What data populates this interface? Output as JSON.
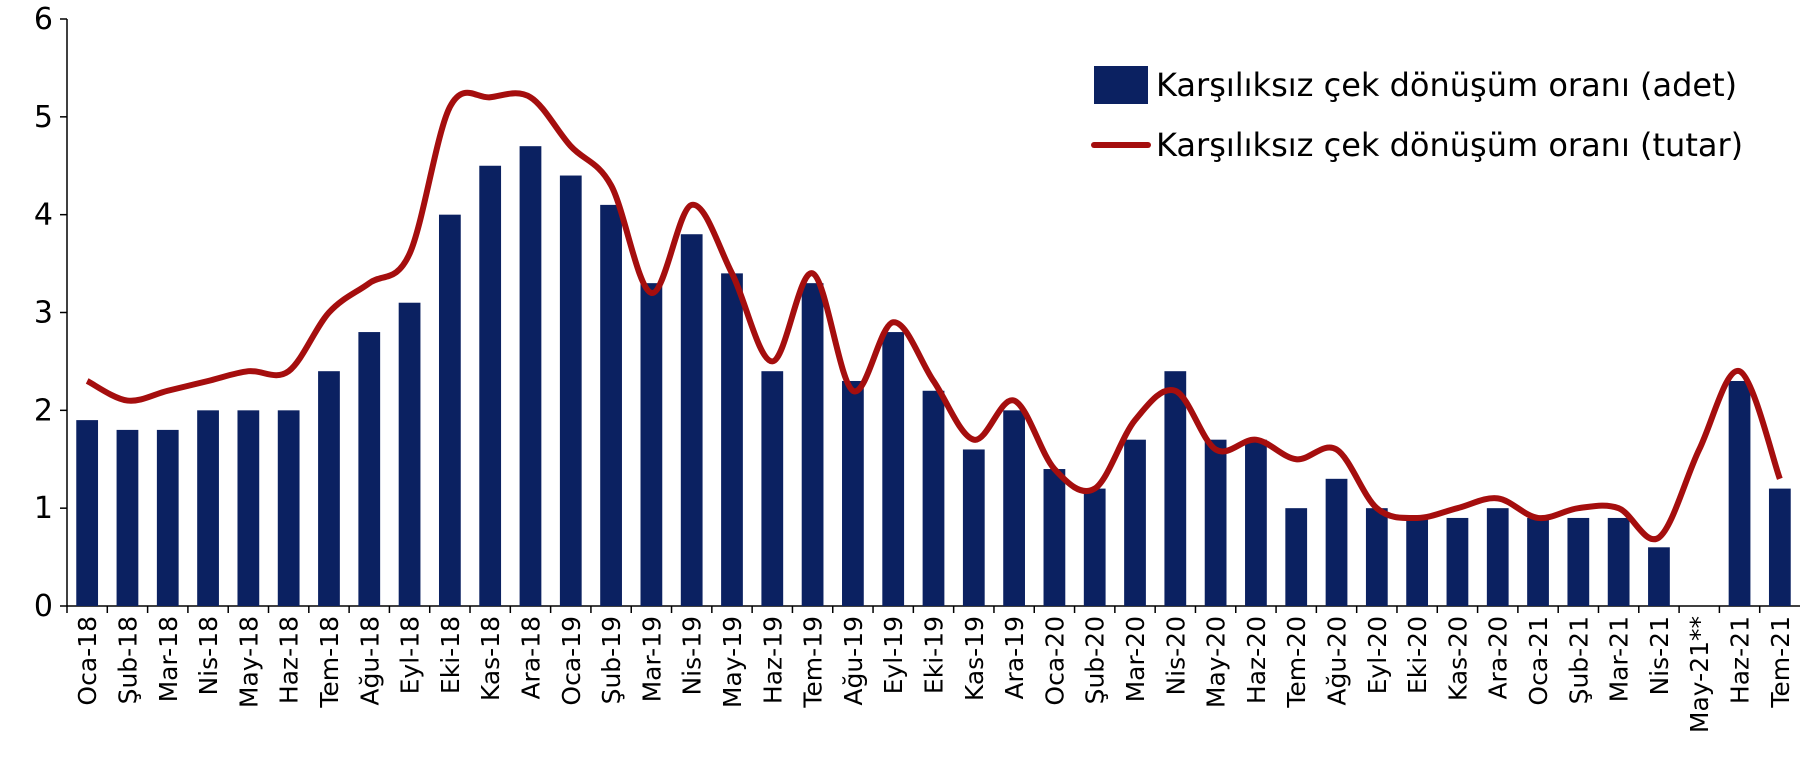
{
  "chart_data": {
    "type": "bar_line",
    "categories": [
      "Oca-18",
      "Şub-18",
      "Mar-18",
      "Nis-18",
      "May-18",
      "Haz-18",
      "Tem-18",
      "Ağu-18",
      "Eyl-18",
      "Eki-18",
      "Kas-18",
      "Ara-18",
      "Oca-19",
      "Şub-19",
      "Mar-19",
      "Nis-19",
      "May-19",
      "Haz-19",
      "Tem-19",
      "Ağu-19",
      "Eyl-19",
      "Eki-19",
      "Kas-19",
      "Ara-19",
      "Oca-20",
      "Şub-20",
      "Mar-20",
      "Nis-20",
      "May-20",
      "Haz-20",
      "Tem-20",
      "Ağu-20",
      "Eyl-20",
      "Eki-20",
      "Kas-20",
      "Ara-20",
      "Oca-21",
      "Şub-21",
      "Mar-21",
      "Nis-21",
      "May-21**",
      "Haz-21",
      "Tem-21"
    ],
    "series": [
      {
        "name": "Karşılıksız çek dönüşüm oranı (adet)",
        "type": "bar",
        "color": "#0b2161",
        "values": [
          1.9,
          1.8,
          1.8,
          2.0,
          2.0,
          2.0,
          2.4,
          2.8,
          3.1,
          4.0,
          4.5,
          4.7,
          4.4,
          4.1,
          3.3,
          3.8,
          3.4,
          2.4,
          3.3,
          2.3,
          2.8,
          2.2,
          1.6,
          2.0,
          1.4,
          1.2,
          1.7,
          2.4,
          1.7,
          1.7,
          1.0,
          1.3,
          1.0,
          0.9,
          0.9,
          1.0,
          0.9,
          0.9,
          0.9,
          0.6,
          null,
          2.3,
          1.2
        ]
      },
      {
        "name": "Karşılıksız çek dönüşüm oranı (tutar)",
        "type": "line",
        "color": "#a50e0e",
        "values": [
          2.3,
          2.1,
          2.2,
          2.3,
          2.4,
          2.4,
          3.0,
          3.3,
          3.6,
          5.1,
          5.2,
          5.2,
          4.7,
          4.3,
          3.2,
          4.1,
          3.4,
          2.5,
          3.4,
          2.2,
          2.9,
          2.3,
          1.7,
          2.1,
          1.4,
          1.2,
          1.9,
          2.2,
          1.6,
          1.7,
          1.5,
          1.6,
          1.0,
          0.9,
          1.0,
          1.1,
          0.9,
          1.0,
          1.0,
          0.7,
          1.6,
          2.4,
          1.3
        ]
      }
    ],
    "ylim": [
      0,
      6
    ],
    "yticks": [
      0,
      1,
      2,
      3,
      4,
      5,
      6
    ],
    "grid": false,
    "legend": "upper right"
  }
}
